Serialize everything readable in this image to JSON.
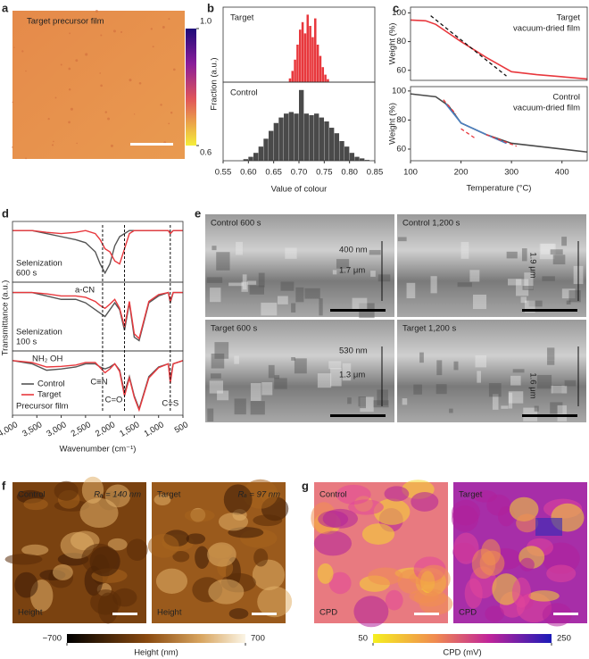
{
  "panel_labels": [
    "a",
    "b",
    "c",
    "d",
    "e",
    "f",
    "g"
  ],
  "image_a": {
    "title": "Target precursor film",
    "colorbar_ticks": [
      {
        "value": 1,
        "label": "1.0"
      },
      {
        "value": 0.6,
        "label": "0.6"
      }
    ]
  },
  "chart_data": [
    {
      "type": "histogram",
      "xlabel": "Value of colour",
      "ylabel": "Fraction (a.u.)",
      "xlim": [
        0.55,
        0.85
      ],
      "xticks": [
        0.55,
        {
          "value": 0.6,
          "label": "0.60"
        },
        0.65,
        {
          "value": 0.7,
          "label": "0.70"
        },
        0.75,
        {
          "value": 0.8,
          "label": "0.80"
        },
        0.85
      ],
      "ylim": [
        0,
        1
      ],
      "subplots": [
        {
          "name": "Target",
          "color": "#e8383d",
          "bins": [
            0.68,
            0.685,
            0.69,
            0.695,
            0.7,
            0.705,
            0.71,
            0.715,
            0.72,
            0.725,
            0.73,
            0.735,
            0.74,
            0.745,
            0.75,
            0.755,
            0.76
          ],
          "counts": [
            0.05,
            0.15,
            0.3,
            0.5,
            0.7,
            0.8,
            0.65,
            0.9,
            0.75,
            0.6,
            0.85,
            0.5,
            0.35,
            0.2,
            0.1,
            0.04
          ]
        },
        {
          "name": "Control",
          "color": "#4a4a4a",
          "bins": [
            0.59,
            0.6,
            0.61,
            0.62,
            0.63,
            0.64,
            0.65,
            0.66,
            0.67,
            0.68,
            0.69,
            0.7,
            0.71,
            0.72,
            0.73,
            0.74,
            0.75,
            0.76,
            0.77,
            0.78,
            0.79,
            0.8,
            0.81,
            0.82,
            0.83,
            0.84
          ],
          "counts": [
            0.02,
            0.05,
            0.1,
            0.18,
            0.28,
            0.38,
            0.48,
            0.55,
            0.6,
            0.62,
            0.6,
            0.9,
            0.6,
            0.58,
            0.6,
            0.55,
            0.5,
            0.42,
            0.35,
            0.25,
            0.18,
            0.1,
            0.05,
            0.03,
            0.01
          ]
        }
      ]
    },
    {
      "type": "line",
      "xlabel": "Temperature (°C)",
      "xlim": [
        100,
        450
      ],
      "xticks": [
        100,
        200,
        300,
        400
      ],
      "subplots": [
        {
          "annotation": [
            "Target",
            "vacuum-dried film"
          ],
          "ylabel": "Weight (%)",
          "ylim": [
            53,
            104
          ],
          "yticks": [
            60,
            80,
            100
          ],
          "series": [
            {
              "color": "#e8383d",
              "x": [
                100,
                130,
                150,
                200,
                250,
                300,
                350,
                400,
                450
              ],
              "values": [
                95,
                94.5,
                92,
                80,
                69,
                59,
                57,
                55.5,
                54
              ]
            },
            {
              "color": "#111111",
              "dash": true,
              "x": [
                140,
                290
              ],
              "values": [
                98,
                56
              ]
            }
          ]
        },
        {
          "annotation": [
            "Control",
            "vacuum-dried film"
          ],
          "ylabel": "Weight (%)",
          "ylim": [
            52,
            103
          ],
          "yticks": [
            60,
            80,
            100
          ],
          "series": [
            {
              "color": "#4a4a4a",
              "x": [
                100,
                150,
                175,
                200,
                250,
                300,
                350,
                400,
                450
              ],
              "values": [
                98,
                96,
                90,
                78,
                70,
                64,
                62,
                60,
                58
              ]
            },
            {
              "color": "#4a7fc0",
              "x": [
                170,
                200,
                250,
                290
              ],
              "values": [
                91,
                78,
                70,
                64
              ]
            },
            {
              "color": "#e8383d",
              "dash": true,
              "x": [
                165,
                190
              ],
              "values": [
                94,
                84
              ]
            },
            {
              "color": "#e8383d",
              "dash": true,
              "x": [
                200,
                230
              ],
              "values": [
                74,
                67
              ]
            },
            {
              "color": "#e8383d",
              "dash": true,
              "x": [
                250,
                310
              ],
              "values": [
                70,
                62
              ]
            }
          ]
        }
      ]
    },
    {
      "type": "line",
      "xlabel": "Wavenumber (cm⁻¹)",
      "ylabel": "Transmittance (a.u.)",
      "xlim": [
        4000,
        500
      ],
      "xticks": [
        {
          "value": 4000,
          "label": "4,000"
        },
        {
          "value": 3500,
          "label": "3,500"
        },
        {
          "value": 3000,
          "label": "3,000"
        },
        {
          "value": 2500,
          "label": "2,500"
        },
        {
          "value": 2000,
          "label": "2,000"
        },
        {
          "value": 1500,
          "label": "1,500"
        },
        {
          "value": 1000,
          "label": "1,000"
        },
        500
      ],
      "series_names": [
        "Control",
        "Target"
      ],
      "colors": [
        "#555555",
        "#e8383d"
      ],
      "x": [
        4000,
        3600,
        3300,
        3000,
        2700,
        2500,
        2300,
        2200,
        2100,
        2000,
        1900,
        1800,
        1700,
        1600,
        1500,
        1400,
        1200,
        1000,
        800,
        760,
        700,
        500
      ],
      "subplots": [
        {
          "annotation": [
            "Selenization",
            "600 s"
          ],
          "ylim": [
            0,
            1
          ],
          "values": [
            [
              0.85,
              0.85,
              0.8,
              0.75,
              0.7,
              0.65,
              0.5,
              0.3,
              0.15,
              0.3,
              0.6,
              0.75,
              0.8,
              0.85,
              0.85,
              0.85,
              0.85,
              0.85,
              0.85,
              0.8,
              0.85,
              0.85
            ],
            [
              0.85,
              0.85,
              0.82,
              0.8,
              0.82,
              0.85,
              0.8,
              0.7,
              0.55,
              0.5,
              0.35,
              0.3,
              0.55,
              0.8,
              0.85,
              0.85,
              0.85,
              0.85,
              0.85,
              0.8,
              0.85,
              0.85
            ]
          ]
        },
        {
          "annotation": [
            "Selenization",
            "100 s"
          ],
          "ylim": [
            0,
            1
          ],
          "values": [
            [
              0.85,
              0.85,
              0.8,
              0.75,
              0.75,
              0.7,
              0.6,
              0.55,
              0.5,
              0.6,
              0.7,
              0.6,
              0.3,
              0.7,
              0.2,
              0.15,
              0.7,
              0.8,
              0.85,
              0.7,
              0.85,
              0.85
            ],
            [
              0.85,
              0.85,
              0.83,
              0.8,
              0.8,
              0.78,
              0.72,
              0.66,
              0.62,
              0.68,
              0.75,
              0.62,
              0.35,
              0.72,
              0.25,
              0.18,
              0.72,
              0.82,
              0.85,
              0.72,
              0.85,
              0.85
            ]
          ]
        },
        {
          "annotation": [
            "Precursor film"
          ],
          "ylim": [
            0,
            1
          ],
          "values": [
            [
              0.85,
              0.8,
              0.7,
              0.72,
              0.75,
              0.8,
              0.8,
              0.75,
              0.72,
              0.75,
              0.8,
              0.7,
              0.35,
              0.6,
              0.3,
              0.1,
              0.6,
              0.75,
              0.8,
              0.55,
              0.8,
              0.85
            ],
            [
              0.85,
              0.82,
              0.75,
              0.76,
              0.78,
              0.82,
              0.82,
              0.74,
              0.66,
              0.72,
              0.8,
              0.68,
              0.3,
              0.58,
              0.28,
              0.08,
              0.58,
              0.74,
              0.8,
              0.5,
              0.8,
              0.85
            ]
          ]
        }
      ],
      "markers": [
        {
          "label": "C≡N",
          "x": 2150
        },
        {
          "label": "C=O",
          "x": 1700
        },
        {
          "label": "C=S",
          "x": 760
        }
      ],
      "band_labels": [
        "a-CN",
        "NH₂ OH"
      ]
    }
  ],
  "sem": {
    "images": [
      {
        "label": "Control 600 s",
        "annotations": [
          "400 nm",
          "1.7 μm"
        ]
      },
      {
        "label": "Control 1,200 s",
        "annotations": [
          "1.9 μm"
        ]
      },
      {
        "label": "Target 600 s",
        "annotations": [
          "530 nm",
          "1.3 μm"
        ]
      },
      {
        "label": "Target 1,200 s",
        "annotations": [
          "1.6 μm"
        ]
      }
    ]
  },
  "afm": {
    "images": [
      {
        "label": "Control",
        "roughness": "Rₐ = 140 nm",
        "channel": "Height"
      },
      {
        "label": "Target",
        "roughness": "Rₐ = 97 nm",
        "channel": "Height"
      }
    ],
    "colorbar": {
      "label": "Height (nm)",
      "ticks": [
        {
          "value": -700,
          "label": "−700"
        },
        700
      ]
    }
  },
  "kpfm": {
    "images": [
      {
        "label": "Control",
        "channel": "CPD"
      },
      {
        "label": "Target",
        "channel": "CPD"
      }
    ],
    "colorbar": {
      "label": "CPD (mV)",
      "ticks": [
        50,
        250
      ]
    }
  }
}
